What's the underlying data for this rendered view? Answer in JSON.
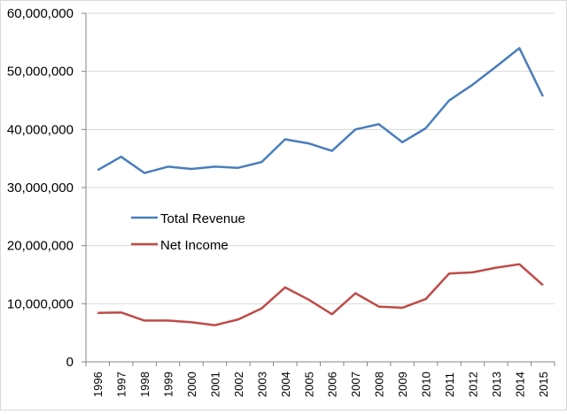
{
  "chart_data": {
    "type": "line",
    "title": "",
    "xlabel": "",
    "ylabel": "",
    "categories": [
      "1996",
      "1997",
      "1998",
      "1999",
      "2000",
      "2001",
      "2002",
      "2003",
      "2004",
      "2005",
      "2006",
      "2007",
      "2008",
      "2009",
      "2010",
      "2011",
      "2012",
      "2013",
      "2014",
      "2015"
    ],
    "ylim": [
      0,
      60000000
    ],
    "yticks": [
      0,
      10000000,
      20000000,
      30000000,
      40000000,
      50000000,
      60000000
    ],
    "ytick_labels": [
      "0",
      "10,000,000",
      "20,000,000",
      "30,000,000",
      "40,000,000",
      "50,000,000",
      "60,000,000"
    ],
    "grid": "horizontal",
    "legend_position": "center-left",
    "series": [
      {
        "name": "Total Revenue",
        "color": "#4a7ebb",
        "values": [
          33000000,
          35300000,
          32500000,
          33600000,
          33200000,
          33600000,
          33400000,
          34400000,
          38300000,
          37600000,
          36300000,
          40000000,
          40900000,
          37800000,
          40200000,
          45000000,
          47700000,
          50800000,
          54000000,
          45700000
        ]
      },
      {
        "name": "Net Income",
        "color": "#be4b48",
        "values": [
          8400000,
          8500000,
          7100000,
          7100000,
          6800000,
          6300000,
          7300000,
          9200000,
          12800000,
          10700000,
          8200000,
          11800000,
          9500000,
          9300000,
          10800000,
          15200000,
          15400000,
          16200000,
          16800000,
          13200000
        ]
      }
    ]
  }
}
